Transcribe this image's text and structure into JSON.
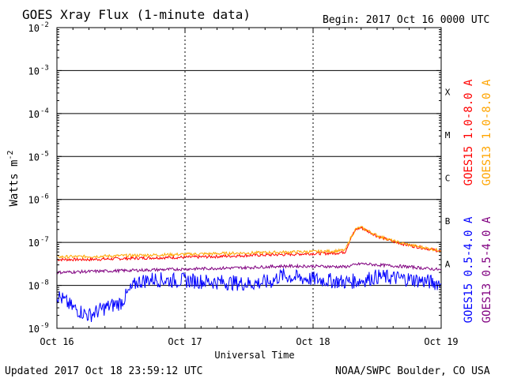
{
  "header": {
    "title": "GOES Xray Flux (1-minute data)",
    "begin": "Begin:  2017 Oct 16 0000 UTC"
  },
  "footer": {
    "updated": "Updated 2017 Oct 18 23:59:12 UTC",
    "credit": "NOAA/SWPC Boulder, CO USA"
  },
  "chart_data": {
    "type": "line",
    "title": "GOES Xray Flux (1-minute data)",
    "xlabel": "Universal Time",
    "ylabel": "Watts m",
    "ylabel_sup": "-2",
    "yscale": "log",
    "ylim": [
      1e-09,
      0.01
    ],
    "xlim_days": [
      "2017-10-16 00:00",
      "2017-10-19 00:00"
    ],
    "x_ticks": [
      "Oct 16",
      "Oct 17",
      "Oct 18",
      "Oct 19"
    ],
    "y_ticks": [
      {
        "base": "10",
        "exp": "-9"
      },
      {
        "base": "10",
        "exp": "-8"
      },
      {
        "base": "10",
        "exp": "-7"
      },
      {
        "base": "10",
        "exp": "-6"
      },
      {
        "base": "10",
        "exp": "-5"
      },
      {
        "base": "10",
        "exp": "-4"
      },
      {
        "base": "10",
        "exp": "-3"
      },
      {
        "base": "10",
        "exp": "-2"
      }
    ],
    "flare_classes": [
      "A",
      "B",
      "C",
      "M",
      "X"
    ],
    "grid": true,
    "legend_position": "right",
    "colors": {
      "goes15_long": "#ff0000",
      "goes13_long": "#ffa500",
      "goes15_short": "#0000ff",
      "goes13_short": "#800080"
    },
    "series": [
      {
        "name": "GOES15 1.0-8.0 A",
        "color": "#ff0000",
        "x": [
          "2017-10-16 00:00",
          "2017-10-16 06:00",
          "2017-10-16 12:00",
          "2017-10-16 18:00",
          "2017-10-17 00:00",
          "2017-10-17 06:00",
          "2017-10-17 12:00",
          "2017-10-17 18:00",
          "2017-10-18 00:00",
          "2017-10-18 04:00",
          "2017-10-18 06:00",
          "2017-10-18 07:00",
          "2017-10-18 08:00",
          "2017-10-18 09:00",
          "2017-10-18 10:00",
          "2017-10-18 12:00",
          "2017-10-18 15:00",
          "2017-10-18 18:00",
          "2017-10-18 21:00",
          "2017-10-19 00:00"
        ],
        "y": [
          4e-08,
          4e-08,
          4.2e-08,
          4.4e-08,
          4.5e-08,
          4.7e-08,
          5e-08,
          5.2e-08,
          5.5e-08,
          5.6e-08,
          6e-08,
          1.2e-07,
          2e-07,
          2.2e-07,
          1.9e-07,
          1.4e-07,
          1.05e-07,
          8.5e-08,
          7.3e-08,
          6.2e-08
        ]
      },
      {
        "name": "GOES13 1.0-8.0 A",
        "color": "#ffa500",
        "x": [
          "2017-10-16 00:00",
          "2017-10-16 06:00",
          "2017-10-16 12:00",
          "2017-10-16 18:00",
          "2017-10-17 00:00",
          "2017-10-17 06:00",
          "2017-10-17 12:00",
          "2017-10-17 18:00",
          "2017-10-18 00:00",
          "2017-10-18 04:00",
          "2017-10-18 06:00",
          "2017-10-18 07:00",
          "2017-10-18 08:00",
          "2017-10-18 09:00",
          "2017-10-18 10:00",
          "2017-10-18 12:00",
          "2017-10-18 15:00",
          "2017-10-18 18:00",
          "2017-10-18 21:00",
          "2017-10-19 00:00"
        ],
        "y": [
          4.6e-08,
          4.7e-08,
          4.9e-08,
          5.1e-08,
          5.3e-08,
          5.5e-08,
          5.7e-08,
          5.9e-08,
          6.1e-08,
          6.3e-08,
          6.6e-08,
          1.25e-07,
          2.05e-07,
          2.25e-07,
          1.95e-07,
          1.45e-07,
          1.08e-07,
          8.8e-08,
          7.5e-08,
          6.4e-08
        ]
      },
      {
        "name": "GOES15 0.5-4.0 A",
        "color": "#0000ff",
        "x": [
          "2017-10-16 00:00",
          "2017-10-16 03:00",
          "2017-10-16 06:00",
          "2017-10-16 09:00",
          "2017-10-16 12:00",
          "2017-10-16 15:00",
          "2017-10-16 18:00",
          "2017-10-16 21:00",
          "2017-10-17 00:00",
          "2017-10-17 06:00",
          "2017-10-17 12:00",
          "2017-10-17 16:00",
          "2017-10-17 18:00",
          "2017-10-17 21:00",
          "2017-10-18 00:00",
          "2017-10-18 06:00",
          "2017-10-18 09:00",
          "2017-10-18 12:00",
          "2017-10-18 18:00",
          "2017-10-19 00:00"
        ],
        "y": [
          6e-09,
          3e-09,
          2e-09,
          3e-09,
          4e-09,
          1.2e-08,
          1.4e-08,
          1.3e-08,
          1.3e-08,
          1.2e-08,
          1.1e-08,
          1.2e-08,
          1.7e-08,
          1.5e-08,
          1.4e-08,
          1.2e-08,
          1.3e-08,
          1.6e-08,
          1.4e-08,
          1.1e-08
        ]
      },
      {
        "name": "GOES13 0.5-4.0 A",
        "color": "#800080",
        "x": [
          "2017-10-16 00:00",
          "2017-10-16 06:00",
          "2017-10-16 12:00",
          "2017-10-16 18:00",
          "2017-10-17 00:00",
          "2017-10-17 06:00",
          "2017-10-17 12:00",
          "2017-10-17 18:00",
          "2017-10-18 00:00",
          "2017-10-18 06:00",
          "2017-10-18 09:00",
          "2017-10-18 12:00",
          "2017-10-18 18:00",
          "2017-10-19 00:00"
        ],
        "y": [
          2e-08,
          2.1e-08,
          2.2e-08,
          2.3e-08,
          2.4e-08,
          2.5e-08,
          2.6e-08,
          2.8e-08,
          2.8e-08,
          2.7e-08,
          3.2e-08,
          3e-08,
          2.7e-08,
          2.3e-08
        ]
      }
    ]
  }
}
